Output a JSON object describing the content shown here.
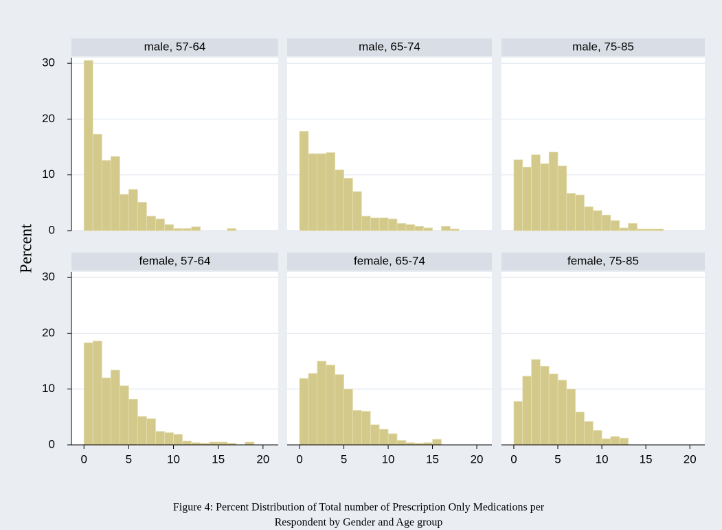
{
  "y_label": "Percent",
  "caption": [
    "Figure 4: Percent Distribution of Total number of Prescription Only Medications per",
    "Respondent by Gender and Age group"
  ],
  "chart_data": [
    {
      "type": "histogram",
      "title": "male, 57-64",
      "color": "#d3c98b",
      "bins": [
        0,
        1,
        2,
        3,
        4,
        5,
        6,
        7,
        8,
        9,
        10,
        11,
        12,
        13,
        14,
        15,
        16,
        17,
        18,
        19,
        20
      ],
      "counts": [
        30.5,
        17.3,
        12.6,
        13.3,
        6.5,
        7.4,
        5.1,
        2.6,
        2.1,
        1.1,
        0.4,
        0.4,
        0.7,
        0,
        0,
        0,
        0.4,
        0,
        0,
        0
      ],
      "xlim": [
        -1.4,
        21.7
      ],
      "ylim": [
        0,
        31
      ],
      "yticks": [
        0,
        10,
        20,
        30
      ],
      "grid": true
    },
    {
      "type": "histogram",
      "title": "male, 65-74",
      "color": "#d3c98b",
      "bins": [
        0,
        1,
        2,
        3,
        4,
        5,
        6,
        7,
        8,
        9,
        10,
        11,
        12,
        13,
        14,
        15,
        16,
        17,
        18,
        19,
        20
      ],
      "counts": [
        17.8,
        13.8,
        13.8,
        14,
        10.9,
        9.4,
        7,
        2.6,
        2.3,
        2.3,
        2.1,
        1.3,
        1.1,
        0.8,
        0.5,
        0,
        0.8,
        0.3,
        0,
        0
      ],
      "xlim": [
        -1.4,
        21.7
      ],
      "ylim": [
        0,
        31
      ],
      "yticks": [
        0,
        10,
        20,
        30
      ],
      "grid": true
    },
    {
      "type": "histogram",
      "title": "male, 75-85",
      "color": "#d3c98b",
      "bins": [
        0,
        1,
        2,
        3,
        4,
        5,
        6,
        7,
        8,
        9,
        10,
        11,
        12,
        13,
        14,
        15,
        16,
        17,
        18,
        19,
        20
      ],
      "counts": [
        12.7,
        11.4,
        13.6,
        12,
        14.1,
        11.6,
        6.7,
        6.4,
        4.3,
        3.6,
        2.8,
        1.8,
        0.5,
        1.3,
        0.3,
        0.3,
        0.3,
        0,
        0,
        0
      ],
      "xlim": [
        -1.4,
        21.7
      ],
      "ylim": [
        0,
        31
      ],
      "yticks": [
        0,
        10,
        20,
        30
      ],
      "grid": true
    },
    {
      "type": "histogram",
      "title": "female, 57-64",
      "color": "#d3c98b",
      "bins": [
        0,
        1,
        2,
        3,
        4,
        5,
        6,
        7,
        8,
        9,
        10,
        11,
        12,
        13,
        14,
        15,
        16,
        17,
        18,
        19,
        20
      ],
      "counts": [
        18.3,
        18.6,
        12,
        13.4,
        10.6,
        8.2,
        5.1,
        4.7,
        2.4,
        2.2,
        1.9,
        0.7,
        0.4,
        0.3,
        0.5,
        0.5,
        0.3,
        0,
        0.5,
        0
      ],
      "xlim": [
        -1.4,
        21.7
      ],
      "ylim": [
        0,
        31
      ],
      "xticks": [
        0,
        5,
        10,
        15,
        20
      ],
      "yticks": [
        0,
        10,
        20,
        30
      ],
      "grid": true
    },
    {
      "type": "histogram",
      "title": "female, 65-74",
      "color": "#d3c98b",
      "bins": [
        0,
        1,
        2,
        3,
        4,
        5,
        6,
        7,
        8,
        9,
        10,
        11,
        12,
        13,
        14,
        15,
        16,
        17,
        18,
        19,
        20
      ],
      "counts": [
        11.9,
        12.8,
        15,
        14.3,
        12.6,
        10,
        6.2,
        6,
        3.6,
        2.8,
        2,
        0.8,
        0.4,
        0.3,
        0.4,
        1,
        0,
        0,
        0,
        0
      ],
      "xlim": [
        -1.4,
        21.7
      ],
      "ylim": [
        0,
        31
      ],
      "xticks": [
        0,
        5,
        10,
        15,
        20
      ],
      "yticks": [
        0,
        10,
        20,
        30
      ],
      "grid": true
    },
    {
      "type": "histogram",
      "title": "female, 75-85",
      "color": "#d3c98b",
      "bins": [
        0,
        1,
        2,
        3,
        4,
        5,
        6,
        7,
        8,
        9,
        10,
        11,
        12,
        13,
        14,
        15,
        16,
        17,
        18,
        19,
        20
      ],
      "counts": [
        7.8,
        12.3,
        15.3,
        14.1,
        12.7,
        11.6,
        10,
        5.9,
        4.2,
        2.6,
        1.1,
        1.5,
        1.2,
        0,
        0,
        0,
        0,
        0,
        0,
        0
      ],
      "xlim": [
        -1.4,
        21.7
      ],
      "ylim": [
        0,
        31
      ],
      "xticks": [
        0,
        5,
        10,
        15,
        20
      ],
      "yticks": [
        0,
        10,
        20,
        30
      ],
      "grid": true
    }
  ]
}
